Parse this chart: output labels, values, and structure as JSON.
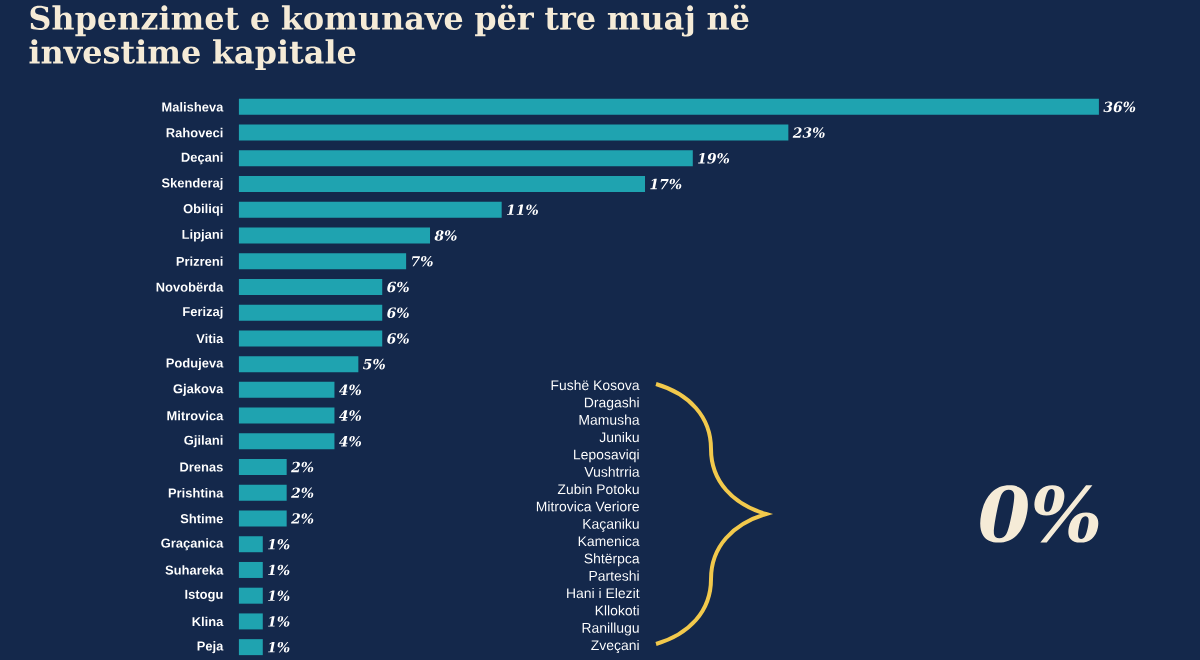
{
  "chart_data": {
    "type": "bar",
    "orientation": "horizontal",
    "title": "Shpenzimet e komunave për tre muaj në investime kapitale",
    "categories": [
      "Malisheva",
      "Rahoveci",
      "Deçani",
      "Skenderaj",
      "Obiliqi",
      "Lipjani",
      "Prizreni",
      "Novobërda",
      "Ferizaj",
      "Vitia",
      "Podujeva",
      "Gjakova",
      "Mitrovica",
      "Gjilani",
      "Drenas",
      "Prishtina",
      "Shtime",
      "Graçanica",
      "Suhareka",
      "Istogu",
      "Klina",
      "Peja"
    ],
    "values": [
      36,
      23,
      19,
      17,
      11,
      8,
      7,
      6,
      6,
      6,
      5,
      4,
      4,
      4,
      2,
      2,
      2,
      1,
      1,
      1,
      1,
      1
    ],
    "value_labels": [
      "36%",
      "23%",
      "19%",
      "17%",
      "11%",
      "8%",
      "7%",
      "6%",
      "6%",
      "6%",
      "5%",
      "4%",
      "4%",
      "4%",
      "2%",
      "2%",
      "2%",
      "1%",
      "1%",
      "1%",
      "1%",
      "1%"
    ],
    "color": "#1fa3b0",
    "annotations": [
      "Fushë Kosova",
      "Dragashi",
      "Mamusha",
      "Juniku",
      "Leposaviqi",
      "Vushtrria",
      "Zubin Potoku",
      "Mitrovica Veriore",
      "Kaçaniku",
      "Kamenica",
      "Shtërpca",
      "Parteshi",
      "Hani i Elezit",
      "Kllokoti",
      "Ranillugu",
      "Zveçani",
      "0%"
    ]
  }
}
